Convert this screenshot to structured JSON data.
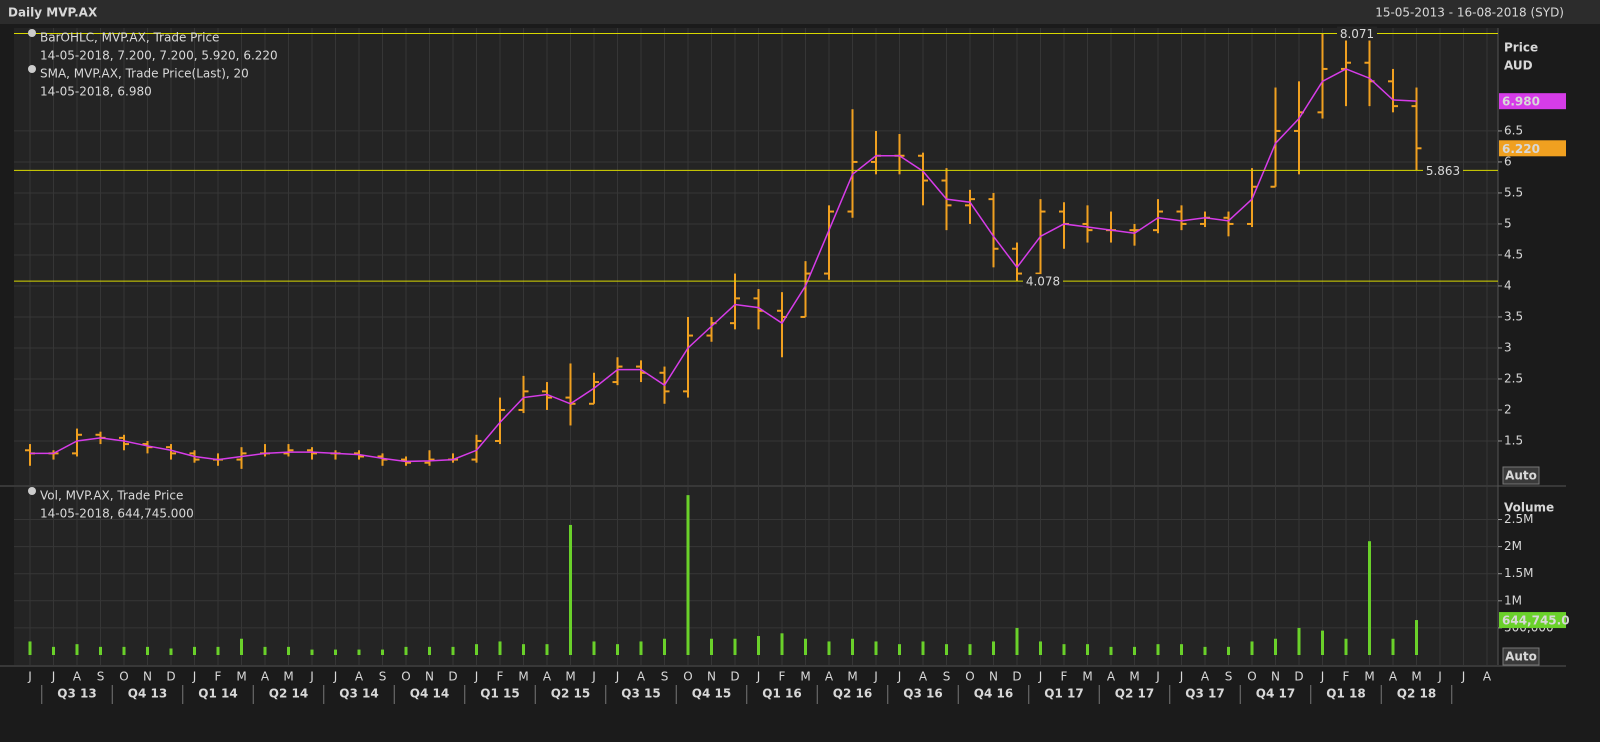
{
  "chart_data": {
    "type": "ohlc",
    "title": "Daily MVP.AX",
    "subtitle": "15-05-2013 - 16-08-2018 (SYD)",
    "ylabel": "Price",
    "yunit": "AUD",
    "auto": "Auto",
    "categories": [
      "J",
      "J",
      "A",
      "S",
      "O",
      "N",
      "D",
      "J",
      "F",
      "M",
      "A",
      "M",
      "J",
      "J",
      "A",
      "S",
      "O",
      "N",
      "D",
      "J",
      "F",
      "M",
      "A",
      "M",
      "J",
      "J",
      "A",
      "S",
      "O",
      "N",
      "D",
      "J",
      "F",
      "M",
      "A",
      "M",
      "J",
      "J",
      "A",
      "S",
      "O",
      "N",
      "D",
      "J",
      "F",
      "M",
      "A",
      "M",
      "J",
      "J",
      "A",
      "S",
      "O",
      "N",
      "D",
      "J",
      "F",
      "M",
      "A",
      "M",
      "J",
      "J",
      "A"
    ],
    "quarters": [
      "Q3 13",
      "Q4 13",
      "Q1 14",
      "Q2 14",
      "Q3 14",
      "Q4 14",
      "Q1 15",
      "Q2 15",
      "Q3 15",
      "Q4 15",
      "Q1 16",
      "Q2 16",
      "Q3 16",
      "Q4 16",
      "Q1 17",
      "Q2 17",
      "Q3 17",
      "Q4 17",
      "Q1 18",
      "Q2 18"
    ],
    "ylim": [
      0.79,
      8.16
    ],
    "yticks": [
      1.5,
      2,
      2.5,
      3,
      3.5,
      4,
      4.5,
      5,
      5.5,
      6,
      6.5
    ],
    "grid": true,
    "levels": [
      8.071,
      5.863,
      4.078
    ],
    "level_color": "#d8d800",
    "series": [
      {
        "name": "BarOHLC, MVP.AX, Trade Price",
        "readout": "14-05-2018, 7.200, 7.200, 5.920, 6.220",
        "color": "#f0a020",
        "open": [
          1.35,
          1.3,
          1.3,
          1.6,
          1.55,
          1.45,
          1.4,
          1.3,
          1.2,
          1.2,
          1.3,
          1.3,
          1.35,
          1.3,
          1.3,
          1.25,
          1.2,
          1.15,
          1.2,
          1.2,
          1.5,
          2.0,
          2.3,
          2.2,
          2.1,
          2.45,
          2.7,
          2.6,
          2.3,
          3.2,
          3.4,
          3.8,
          3.6,
          3.5,
          4.2,
          5.2,
          6.0,
          6.1,
          6.1,
          5.7,
          5.3,
          5.4,
          4.6,
          4.2,
          5.2,
          5.0,
          4.9,
          4.9,
          4.9,
          5.2,
          5.0,
          5.1,
          5.0,
          5.6,
          6.5,
          6.8,
          7.5,
          7.6,
          7.3,
          6.9,
          null,
          null,
          null
        ],
        "high": [
          1.45,
          1.35,
          1.7,
          1.65,
          1.6,
          1.5,
          1.45,
          1.35,
          1.3,
          1.4,
          1.45,
          1.45,
          1.4,
          1.35,
          1.35,
          1.3,
          1.25,
          1.35,
          1.3,
          1.6,
          2.2,
          2.55,
          2.45,
          2.75,
          2.6,
          2.85,
          2.8,
          2.7,
          3.5,
          3.5,
          4.2,
          3.95,
          3.9,
          4.4,
          5.3,
          6.85,
          6.5,
          6.45,
          6.15,
          5.9,
          5.55,
          5.5,
          4.7,
          5.4,
          5.35,
          5.3,
          5.2,
          5.0,
          5.4,
          5.3,
          5.2,
          5.2,
          5.9,
          7.2,
          7.3,
          8.071,
          8.0,
          8.0,
          7.5,
          7.2,
          null,
          null,
          null
        ],
        "low": [
          1.1,
          1.2,
          1.25,
          1.45,
          1.35,
          1.3,
          1.2,
          1.15,
          1.1,
          1.05,
          1.25,
          1.25,
          1.2,
          1.2,
          1.2,
          1.1,
          1.1,
          1.1,
          1.15,
          1.15,
          1.45,
          1.95,
          2.0,
          1.75,
          2.1,
          2.4,
          2.45,
          2.1,
          2.2,
          3.1,
          3.3,
          3.3,
          2.85,
          3.5,
          4.1,
          5.1,
          5.8,
          5.8,
          5.3,
          4.9,
          5.0,
          4.3,
          4.08,
          4.1,
          4.6,
          4.7,
          4.7,
          4.65,
          4.85,
          4.9,
          4.95,
          4.8,
          4.95,
          5.6,
          5.8,
          6.7,
          6.9,
          6.9,
          6.8,
          5.863,
          null,
          null,
          null
        ],
        "close": [
          1.3,
          1.3,
          1.6,
          1.55,
          1.45,
          1.4,
          1.3,
          1.2,
          1.2,
          1.3,
          1.3,
          1.35,
          1.3,
          1.3,
          1.25,
          1.2,
          1.15,
          1.2,
          1.2,
          1.5,
          2.0,
          2.3,
          2.2,
          2.1,
          2.45,
          2.7,
          2.6,
          2.3,
          3.2,
          3.4,
          3.8,
          3.6,
          3.5,
          4.2,
          5.2,
          6.0,
          6.1,
          6.1,
          5.7,
          5.3,
          5.4,
          4.6,
          4.2,
          5.2,
          5.0,
          4.9,
          4.9,
          4.9,
          5.2,
          5.0,
          5.1,
          5.0,
          5.6,
          6.5,
          6.8,
          7.5,
          7.6,
          7.3,
          6.9,
          6.22,
          null,
          null,
          null
        ],
        "last": {
          "value": 6.22,
          "label": "6.220"
        }
      },
      {
        "name": "SMA, MVP.AX, Trade Price(Last),  20",
        "readout": "14-05-2018, 6.980",
        "color": "#d63ce8",
        "values": [
          1.3,
          1.3,
          1.5,
          1.55,
          1.5,
          1.42,
          1.35,
          1.25,
          1.2,
          1.25,
          1.3,
          1.32,
          1.32,
          1.3,
          1.28,
          1.22,
          1.17,
          1.18,
          1.2,
          1.35,
          1.8,
          2.2,
          2.25,
          2.1,
          2.35,
          2.65,
          2.65,
          2.4,
          3.0,
          3.35,
          3.7,
          3.65,
          3.4,
          4.0,
          4.9,
          5.8,
          6.1,
          6.1,
          5.85,
          5.4,
          5.35,
          4.8,
          4.3,
          4.8,
          5.0,
          4.95,
          4.9,
          4.85,
          5.1,
          5.05,
          5.1,
          5.05,
          5.4,
          6.3,
          6.7,
          7.3,
          7.5,
          7.35,
          7.0,
          6.98,
          null,
          null,
          null
        ],
        "last": {
          "value": 6.98,
          "label": "6.980"
        }
      }
    ],
    "volume": {
      "name": "Vol, MVP.AX, Trade Price",
      "readout": "14-05-2018, 644,745.000",
      "ylabel": "Volume",
      "color": "#6ad12a",
      "values": [
        250000,
        150000,
        200000,
        150000,
        150000,
        150000,
        120000,
        150000,
        150000,
        300000,
        150000,
        150000,
        100000,
        100000,
        100000,
        100000,
        150000,
        150000,
        150000,
        200000,
        250000,
        200000,
        200000,
        2400000,
        250000,
        200000,
        250000,
        300000,
        2950000,
        300000,
        300000,
        350000,
        400000,
        300000,
        250000,
        300000,
        250000,
        200000,
        250000,
        200000,
        200000,
        250000,
        500000,
        250000,
        200000,
        200000,
        150000,
        150000,
        200000,
        200000,
        150000,
        150000,
        250000,
        300000,
        500000,
        450000,
        300000,
        2100000,
        300000,
        644745,
        null,
        null,
        null
      ],
      "ylim": [
        0,
        3100000
      ],
      "yticks": [
        {
          "value": 500000,
          "label": "500,000"
        },
        {
          "value": 1000000,
          "label": "1M"
        },
        {
          "value": 1500000,
          "label": "1.5M"
        },
        {
          "value": 2000000,
          "label": "2M"
        },
        {
          "value": 2500000,
          "label": "2.5M"
        }
      ],
      "last": {
        "value": 644745,
        "label": "644,745.0"
      }
    }
  }
}
